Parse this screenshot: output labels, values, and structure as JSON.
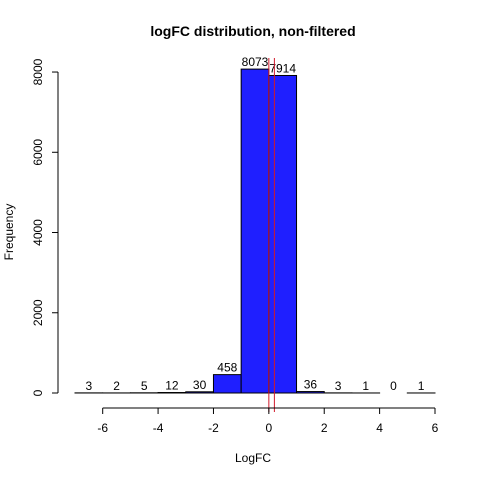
{
  "chart_data": {
    "type": "bar",
    "title": "logFC distribution, non-filtered",
    "xlabel": "LogFC",
    "ylabel": "Frequency",
    "bin_edges": [
      -7,
      -6,
      -5,
      -4,
      -3,
      -2,
      -1,
      0,
      1,
      2,
      3,
      4,
      5,
      6
    ],
    "values": [
      3,
      2,
      5,
      12,
      30,
      458,
      8073,
      7914,
      36,
      3,
      1,
      0,
      1
    ],
    "data_labels": [
      "3",
      "2",
      "5",
      "12",
      "30",
      "458",
      "8073",
      "7914",
      "36",
      "3",
      "1",
      "0",
      "1"
    ],
    "xlim": [
      -7,
      6
    ],
    "ylim": [
      0,
      8250
    ],
    "x_ticks": [
      -6,
      -4,
      -2,
      0,
      2,
      4,
      6
    ],
    "x_tick_labels": [
      "-6",
      "-4",
      "-2",
      "0",
      "2",
      "4",
      "6"
    ],
    "y_ticks": [
      0,
      2000,
      4000,
      6000,
      8000
    ],
    "y_tick_labels": [
      "0",
      "2000",
      "4000",
      "6000",
      "8000"
    ],
    "vlines": [
      0,
      0.2
    ],
    "colors": {
      "bar_fill": "#1f1fff",
      "bar_stroke": "#000000",
      "vline": "#d11a2a"
    },
    "grid": false,
    "legend": "none"
  }
}
